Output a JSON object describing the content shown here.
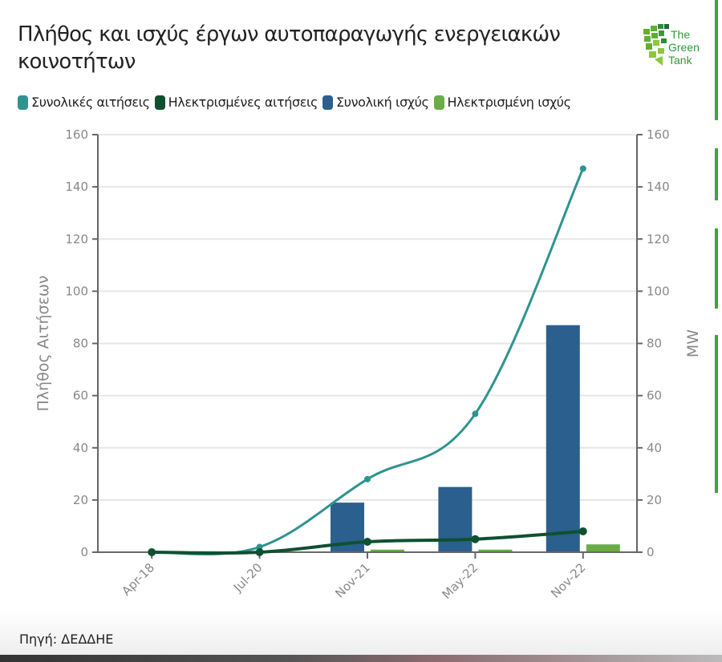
{
  "title": "Πλήθος και ισχύς έργων αυτοπαραγωγής ενεργειακών κοινοτήτων",
  "logo_text": [
    "The",
    "Green",
    "Tank"
  ],
  "source": "Πηγή: ΔΕΔΔΗΕ",
  "colors": {
    "total_requests": "#2e9390",
    "elec_requests": "#0f5030",
    "total_power": "#2b5f8e",
    "elec_power": "#6aad45"
  },
  "chart_data": {
    "type": "bar",
    "title": "Πλήθος και ισχύς έργων αυτοπαραγωγής ενεργειακών κοινοτήτων",
    "categories": [
      "Apr-18",
      "Jul-20",
      "Nov-21",
      "May-22",
      "Nov-22"
    ],
    "ylabel": "Πλήθος Αιτήσεων",
    "y2label": "MW",
    "ylim": [
      0,
      160
    ],
    "y2lim": [
      0,
      160
    ],
    "yticks": [
      0,
      20,
      40,
      60,
      80,
      100,
      120,
      140,
      160
    ],
    "legend_position": "top-left",
    "series": [
      {
        "name": "Συνολικές αιτήσεις",
        "type": "line",
        "axis": "left",
        "values": [
          0,
          2,
          28,
          53,
          147
        ]
      },
      {
        "name": "Ηλεκτρισμένες αιτήσεις",
        "type": "line",
        "axis": "left",
        "values": [
          0,
          0,
          4,
          5,
          8
        ]
      },
      {
        "name": "Συνολική ισχύς",
        "type": "bar",
        "axis": "right",
        "values": [
          0,
          0,
          19,
          25,
          87
        ]
      },
      {
        "name": "Ηλεκτρισμένη ισχύς",
        "type": "bar",
        "axis": "right",
        "values": [
          0,
          0,
          1,
          1,
          3
        ]
      }
    ]
  }
}
